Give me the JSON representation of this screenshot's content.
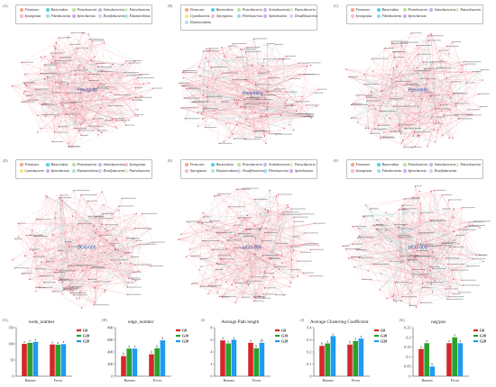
{
  "networks": [
    {
      "letter": "(A)",
      "legend": [
        "Firmicutes",
        "Bacteroidota",
        "Proteobacteria",
        "Actinobacteriota",
        "Patescibacteria",
        "Synergistota",
        "Fibrobacterota",
        "Spirochaetota",
        "Desulfobacterota",
        "Elusimicrobiota"
      ],
      "center": "Prevotella",
      "seed": 11
    },
    {
      "letter": "(B)",
      "legend": [
        "Firmicutes",
        "Bacteroidota",
        "Proteobacteria",
        "Actinobacteriota",
        "Patescibacteria",
        "Cyanobacteria",
        "Synergistota",
        "Fibrobacterota",
        "Spirochaetota",
        "Desulfobacterota",
        "Elusimicrobiota"
      ],
      "center": "Prevotella",
      "seed": 23
    },
    {
      "letter": "(C)",
      "legend": [
        "Firmicutes",
        "Bacteroidota",
        "Proteobacteria",
        "Actinobacteriota",
        "Patescibacteria",
        "Synergistota",
        "Fibrobacterota",
        "Spirochaetota"
      ],
      "center": "Prevotella",
      "seed": 37
    },
    {
      "letter": "(D)",
      "legend": [
        "Firmicutes",
        "Bacteroidota",
        "Proteobacteria",
        "Actinobacteriota",
        "Synergistota",
        "Cyanobacteria",
        "Spirochaetota",
        "Elusimicrobiota",
        "Desulfobacterota",
        "Patescibacteria"
      ],
      "center": "UCG-005",
      "seed": 41
    },
    {
      "letter": "(E)",
      "legend": [
        "Firmicutes",
        "Bacteroidota",
        "Proteobacteria",
        "Actinobacteriota",
        "Patescibacteria",
        "Synergistota",
        "Elusimicrobiota",
        "Desulfobacterota",
        "Fibrobacterota",
        "Spirochaetota"
      ],
      "center": "UCG-005",
      "seed": 53
    },
    {
      "letter": "(F)",
      "legend": [
        "Firmicutes",
        "Bacteroidota",
        "Proteobacteria",
        "Actinobacteriota",
        "Patescibacteria",
        "Synergistota",
        "Fibrobacterota",
        "Spirochaetota",
        "Desulfobacterota"
      ],
      "center": "UCG-005",
      "seed": 67
    }
  ],
  "legend_colors": {
    "Firmicutes": "#f4a582",
    "Bacteroidota": "#4dd0e1",
    "Proteobacteria": "#b9e3a1",
    "Actinobacteriota": "#c7b3e6",
    "Patescibacteria": "#d9f0c8",
    "Synergistota": "#f7b7d3",
    "Fibrobacterota": "#9ad7f2",
    "Spirochaetota": "#d4a6f0",
    "Desulfobacterota": "#e0c6f5",
    "Elusimicrobiota": "#aee3e0",
    "Cyanobacteria": "#f6e27a"
  },
  "network_colors": {
    "positive_edge": "#f08a94",
    "negative_edge": "#4ecdc4",
    "node": "#c04060",
    "label": "#333333"
  },
  "group_colors": {
    "G0": "#d62728",
    "G10": "#2ca02c",
    "G20": "#1f9bf0"
  },
  "chart_data": [
    {
      "type": "bar",
      "letter": "(G)",
      "title": "node_number",
      "categories": [
        "Rumen",
        "Feces"
      ],
      "series": [
        {
          "name": "G0",
          "values": [
            100,
            98
          ]
        },
        {
          "name": "G10",
          "values": [
            103,
            97
          ]
        },
        {
          "name": "G20",
          "values": [
            106,
            99
          ]
        }
      ],
      "ylim": [
        0,
        150
      ],
      "yticks": [
        0,
        50,
        100,
        150
      ],
      "data_labels": [
        [
          "a",
          "a",
          "a"
        ],
        [
          "a",
          "a",
          "a"
        ]
      ]
    },
    {
      "type": "bar",
      "letter": "(H)",
      "title": "edge_number",
      "categories": [
        "Rumen",
        "Feces"
      ],
      "series": [
        {
          "name": "G0",
          "values": [
            330,
            360
          ]
        },
        {
          "name": "G10",
          "values": [
            455,
            460
          ]
        },
        {
          "name": "G20",
          "values": [
            455,
            590
          ]
        }
      ],
      "ylim": [
        0,
        800
      ],
      "yticks": [
        0,
        200,
        400,
        600,
        800
      ],
      "data_labels": [
        [
          "b",
          "a",
          "a"
        ],
        [
          "b",
          "b",
          "a"
        ]
      ]
    },
    {
      "type": "bar",
      "letter": "(I)",
      "title": "Average Path length",
      "categories": [
        "Rumen",
        "Feces"
      ],
      "series": [
        {
          "name": "G0",
          "values": [
            5.9,
            5.5
          ]
        },
        {
          "name": "G10",
          "values": [
            5.4,
            4.6
          ]
        },
        {
          "name": "G20",
          "values": [
            6.0,
            5.5
          ]
        }
      ],
      "ylim": [
        0,
        8
      ],
      "yticks": [
        0,
        2,
        4,
        6,
        8
      ],
      "data_labels": [
        [
          "a",
          "a",
          "a"
        ],
        [
          "a",
          "b",
          "ab"
        ]
      ]
    },
    {
      "type": "bar",
      "letter": "(J)",
      "title": "Average Clustering Coefficient",
      "categories": [
        "Rumen",
        "Feces"
      ],
      "series": [
        {
          "name": "G0",
          "values": [
            0.25,
            0.26
          ]
        },
        {
          "name": "G10",
          "values": [
            0.27,
            0.29
          ]
        },
        {
          "name": "G20",
          "values": [
            0.33,
            0.31
          ]
        }
      ],
      "ylim": [
        0,
        0.4
      ],
      "yticks": [
        0,
        0.1,
        0.2,
        0.3,
        0.4
      ],
      "data_labels": [
        [
          "b",
          "a",
          "a"
        ],
        [
          "b",
          "a",
          "a"
        ]
      ]
    },
    {
      "type": "bar",
      "letter": "(K)",
      "title": "neg/pos",
      "categories": [
        "Rumen",
        "Feces"
      ],
      "series": [
        {
          "name": "G0",
          "values": [
            0.14,
            0.17
          ]
        },
        {
          "name": "G10",
          "values": [
            0.17,
            0.2
          ]
        },
        {
          "name": "G20",
          "values": [
            0.05,
            0.17
          ]
        }
      ],
      "ylim": [
        0,
        0.25
      ],
      "yticks": [
        0,
        0.05,
        0.1,
        0.15,
        0.2,
        0.25
      ],
      "data_labels": [
        [
          "a",
          "a",
          "b"
        ],
        [
          "a",
          "a",
          "a"
        ]
      ]
    }
  ]
}
